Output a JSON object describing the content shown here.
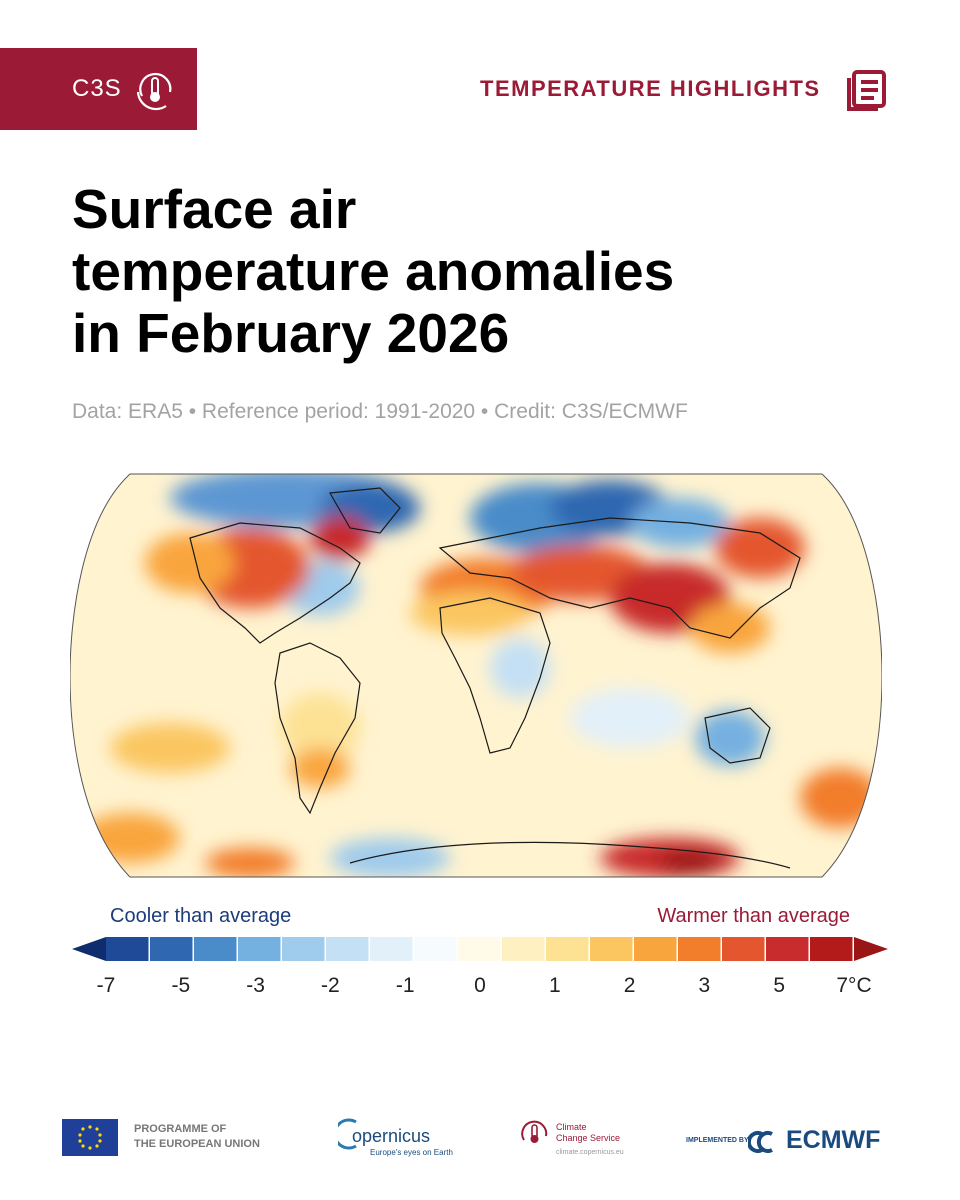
{
  "header": {
    "badge_text": "C3S",
    "section_label": "TEMPERATURE HIGHLIGHTS",
    "brand_color": "#9b1b36"
  },
  "title_lines": [
    "Surface air",
    "temperature anomalies",
    "in February 2026"
  ],
  "subtitle": "Data: ERA5 • Reference period: 1991-2020 • Credit: C3S/ECMWF",
  "map": {
    "projection": "Robinson",
    "variable": "surface air temperature anomaly",
    "unit": "°C"
  },
  "legend": {
    "cooler_label": "Cooler than average",
    "warmer_label": "Warmer than average",
    "ticks": [
      "-7",
      "-5",
      "-3",
      "-2",
      "-1",
      "0",
      "1",
      "2",
      "3",
      "5",
      "7°C"
    ],
    "colors": [
      "#0f2c6e",
      "#1f4a98",
      "#2f67b1",
      "#4a8cc9",
      "#74b0e0",
      "#9fcbec",
      "#c4e0f4",
      "#e2f0f9",
      "#f6fbfd",
      "#fffbe8",
      "#fff0c2",
      "#fde294",
      "#fbc660",
      "#f9a53d",
      "#f27d2a",
      "#e4572e",
      "#c82c2c",
      "#b31b1b",
      "#9a1515"
    ]
  },
  "footer": {
    "eu_line1": "PROGRAMME OF",
    "eu_line2": "THE EUROPEAN UNION",
    "copernicus": "opernicus",
    "copernicus_tag": "Europe's eyes on Earth",
    "ccs_line1": "Climate",
    "ccs_line2": "Change Service",
    "ccs_url": "climate.copernicus.eu",
    "implemented_by": "IMPLEMENTED BY",
    "ecmwf": "ECMWF"
  }
}
